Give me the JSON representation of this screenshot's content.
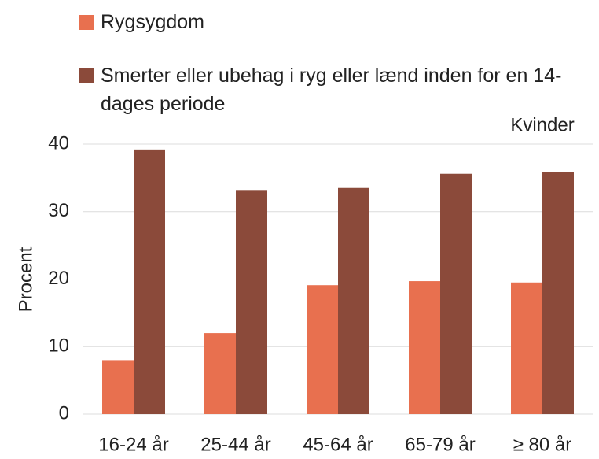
{
  "chart_data": {
    "type": "bar",
    "annotation": "Kvinder",
    "y_label": "Procent",
    "categories": [
      "16-24 år",
      "25-44 år",
      "45-64 år",
      "65-79 år",
      "≥ 80 år"
    ],
    "series": [
      {
        "name": "Rygsygdom",
        "color": "#e8704f",
        "values": [
          8,
          12,
          19.1,
          19.7,
          19.5
        ]
      },
      {
        "name": "Smerter eller ubehag i ryg eller lænd inden for en 14-dages periode",
        "color": "#8b4a3a",
        "values": [
          39.2,
          33.2,
          33.5,
          35.6,
          35.9
        ]
      }
    ],
    "ylim": [
      0,
      40
    ],
    "yticks": [
      0,
      10,
      20,
      30,
      40
    ],
    "grid": true,
    "legend": "top"
  }
}
